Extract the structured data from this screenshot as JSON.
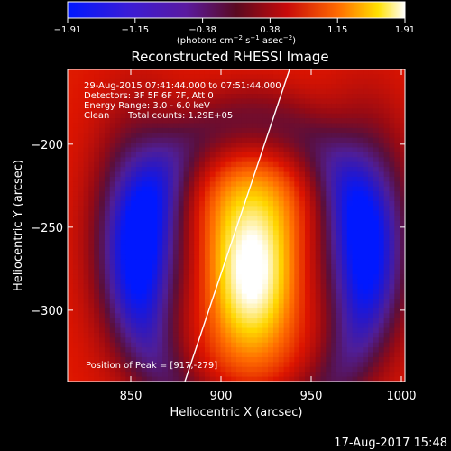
{
  "colorbar": {
    "ticks": [
      "−1.91",
      "−1.15",
      "−0.38",
      "0.38",
      "1.15",
      "1.91"
    ],
    "unit_main": "(photons cm",
    "unit_exp1": "−2",
    "unit_mid1": " s",
    "unit_exp2": "−1",
    "unit_mid2": " asec",
    "unit_exp3": "−2",
    "unit_end": ")",
    "range": [
      -1.91,
      1.91
    ]
  },
  "chart_data": {
    "type": "heatmap",
    "title": "Reconstructed RHESSI Image",
    "xlabel": "Heliocentric X (arcsec)",
    "ylabel": "Heliocentric Y (arcsec)",
    "xlim": [
      815,
      1002
    ],
    "ylim": [
      -343,
      -155
    ],
    "x_ticks": [
      850,
      900,
      950,
      1000
    ],
    "y_ticks": [
      -200,
      -250,
      -300
    ],
    "x_tick_labels": [
      "850",
      "900",
      "950",
      "1000"
    ],
    "y_tick_labels": [
      "−200",
      "−250",
      "−300"
    ],
    "annotations": [
      "29-Aug-2015 07:41:44.000 to 07:51:44.000",
      "Detectors: 3F 5F 6F 7F, Att 0",
      "Energy Range: 3.0 - 6.0 keV",
      "Clean",
      "Total counts: 1.29E+05"
    ],
    "peak_label": "Position of Peak = [917,-279]",
    "peak": [
      917,
      -279
    ],
    "peak_value": 1.91,
    "low_regions": [
      {
        "x": 855,
        "y": -255,
        "value": -1.6
      },
      {
        "x": 980,
        "y": -255,
        "value": -1.5
      }
    ],
    "limb_line": [
      [
        880,
        -343
      ],
      [
        938,
        -155
      ]
    ]
  },
  "footer": {
    "timestamp": "17-Aug-2017 15:48"
  },
  "colors": {
    "background": "#000000",
    "text": "#ffffff"
  }
}
